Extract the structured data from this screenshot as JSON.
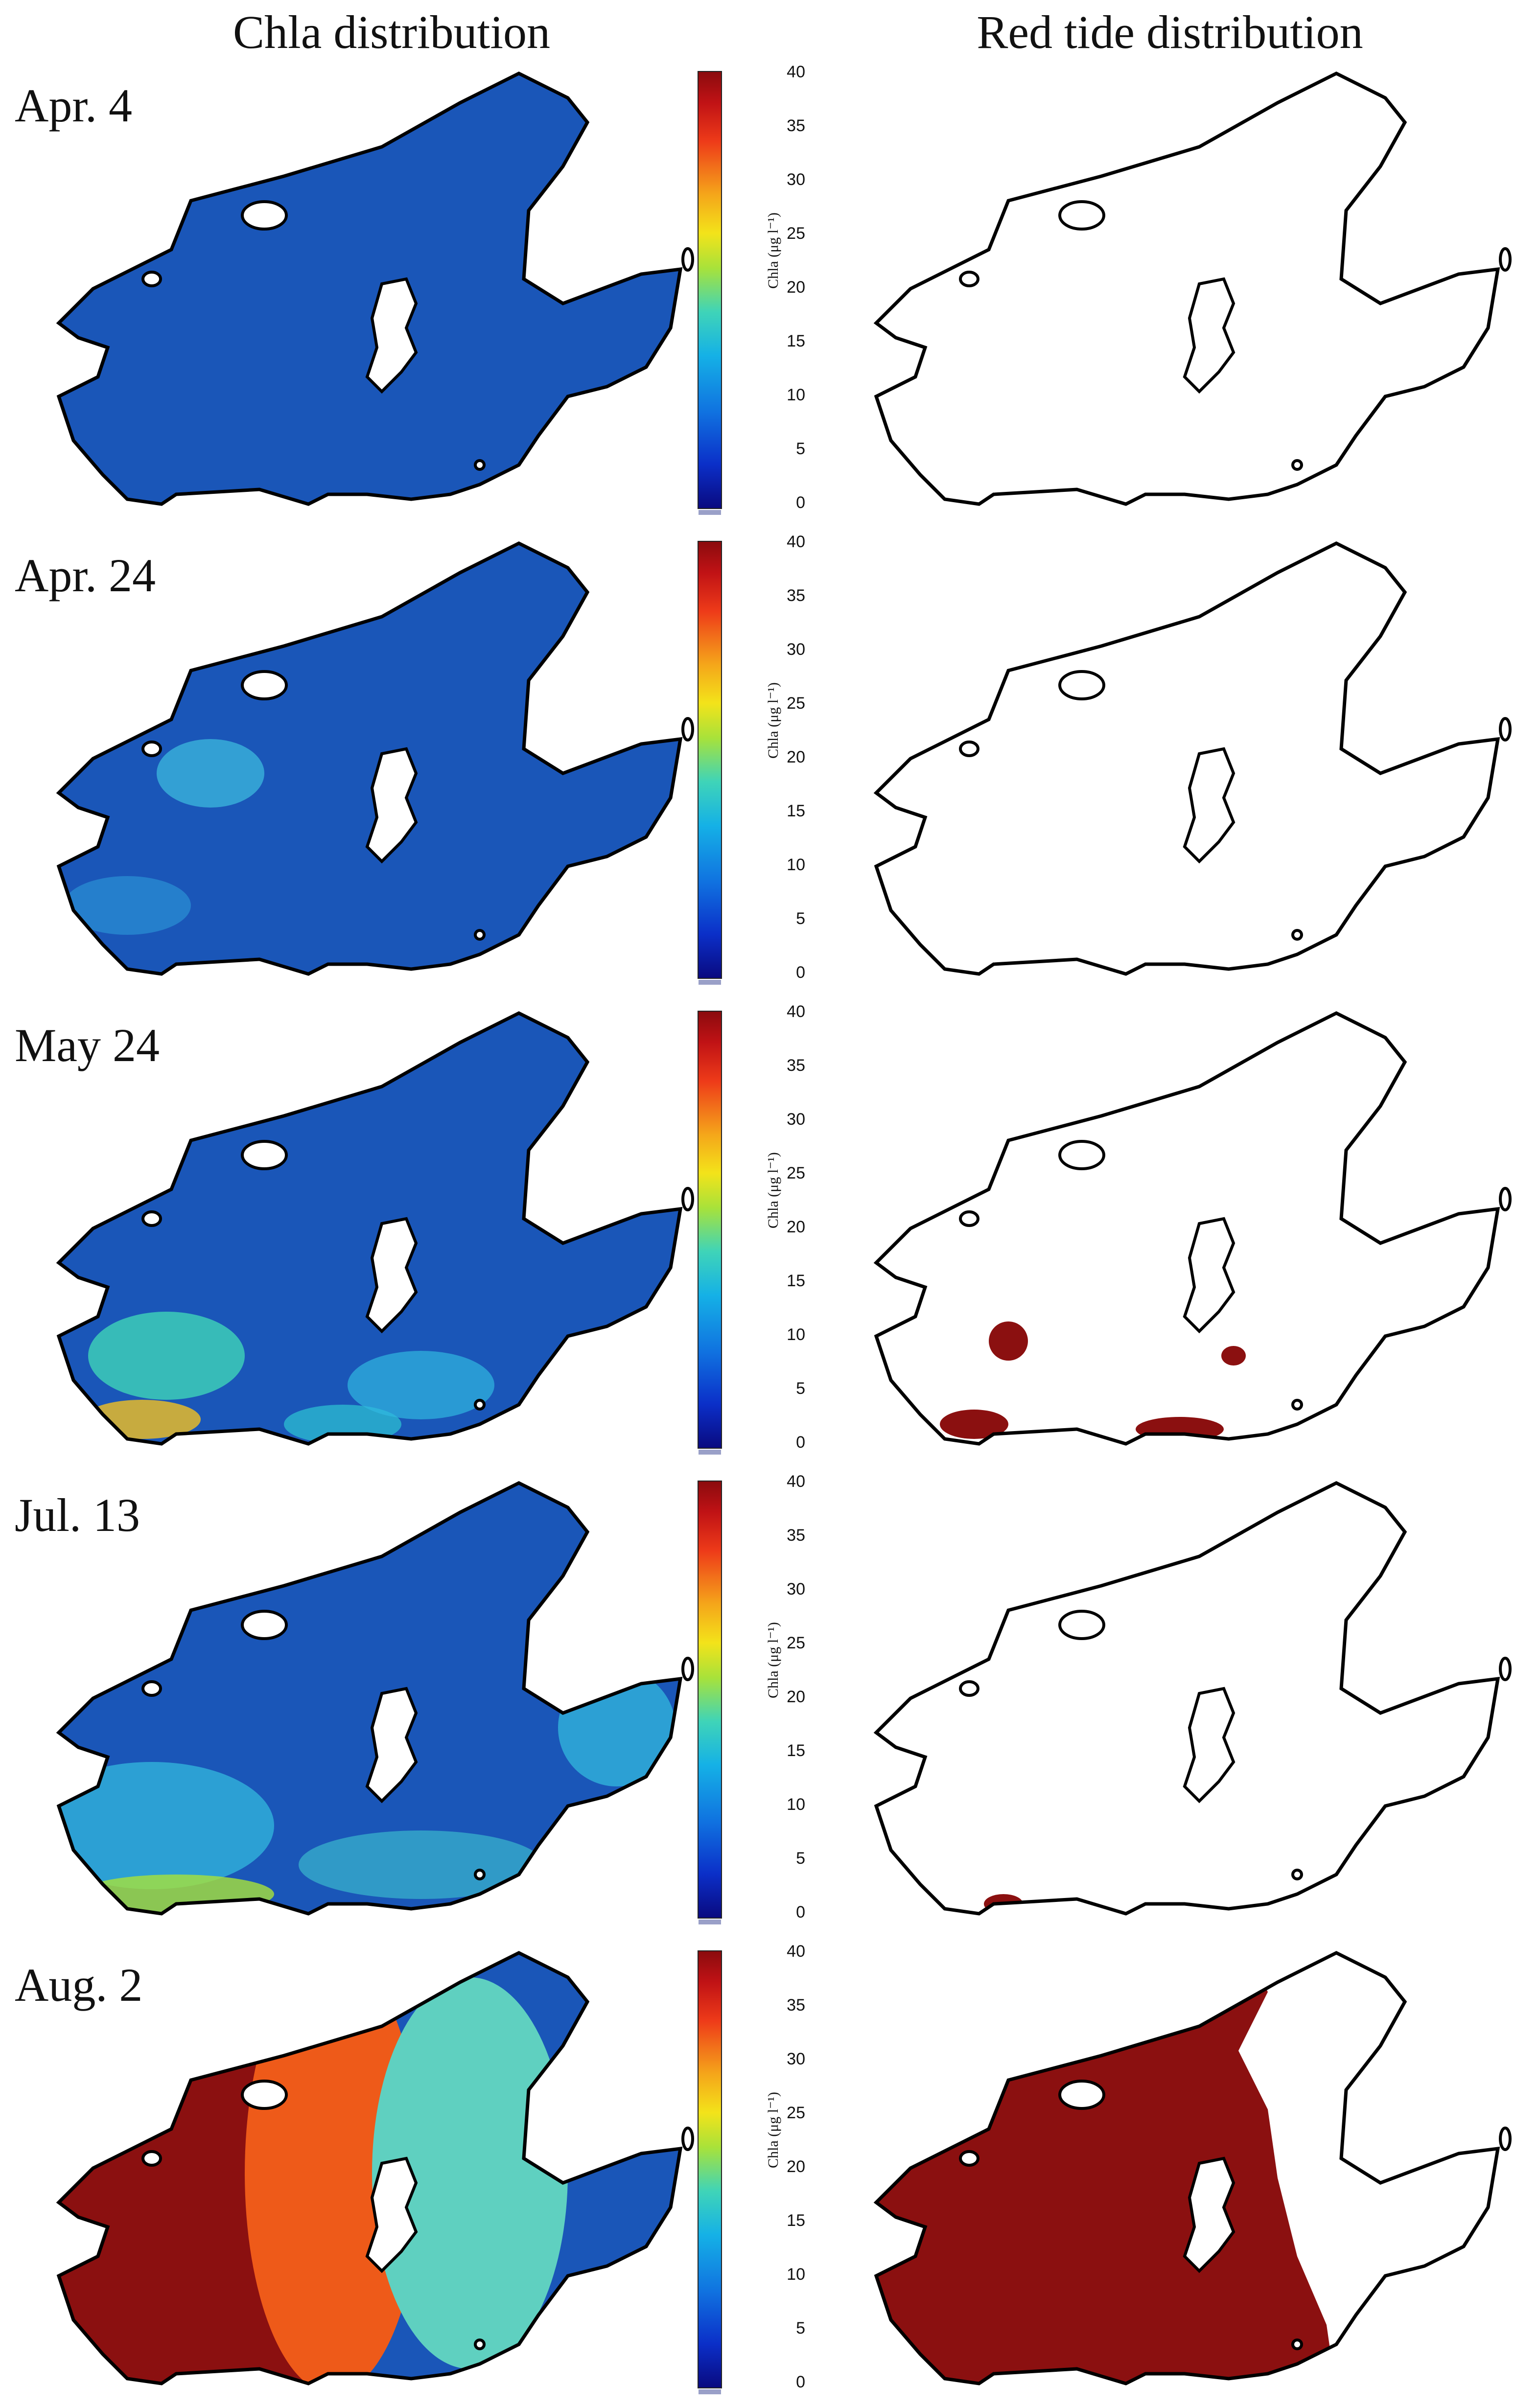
{
  "titles": {
    "left": "Chla distribution",
    "right": "Red tide distribution"
  },
  "colorbar": {
    "label": "Chla (μg l⁻¹)",
    "ticks": [
      "40",
      "35",
      "30",
      "25",
      "20",
      "15",
      "10",
      "5",
      "0"
    ]
  },
  "rows": [
    {
      "date": "Apr. 4"
    },
    {
      "date": "Apr. 24"
    },
    {
      "date": "May 24"
    },
    {
      "date": "Jul. 13"
    },
    {
      "date": "Aug. 2"
    }
  ],
  "colors": {
    "chla_base": "#1a56b8",
    "red_tide": "#8b1010",
    "outline": "#000000"
  }
}
